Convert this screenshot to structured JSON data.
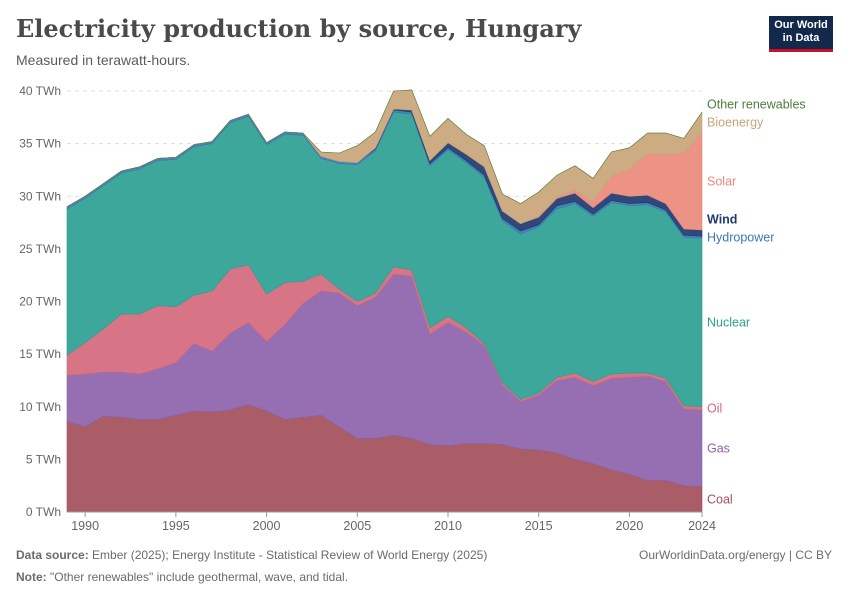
{
  "header": {
    "title": "Electricity production by source, Hungary",
    "subtitle": "Measured in terawatt-hours."
  },
  "logo": {
    "line1": "Our World",
    "line2": "in Data",
    "bg_color": "#13294b",
    "accent_color": "#c8102e"
  },
  "footer": {
    "source_label": "Data source:",
    "source_text": " Ember (2025); Energy Institute - Statistical Review of World Energy (2025)",
    "note_label": "Note:",
    "note_text": " \"Other renewables\" include geothermal, wave, and tidal.",
    "url": "OurWorldinData.org/energy | CC BY"
  },
  "chart_data": {
    "type": "area",
    "stacked": true,
    "x": [
      1989,
      1990,
      1991,
      1992,
      1993,
      1994,
      1995,
      1996,
      1997,
      1998,
      1999,
      2000,
      2001,
      2002,
      2003,
      2004,
      2005,
      2006,
      2007,
      2008,
      2009,
      2010,
      2011,
      2012,
      2013,
      2014,
      2015,
      2016,
      2017,
      2018,
      2019,
      2020,
      2021,
      2022,
      2023,
      2024
    ],
    "xticks": [
      "1990",
      "1995",
      "2000",
      "2005",
      "2010",
      "2015",
      "2020",
      "2024"
    ],
    "ylim": [
      0,
      40
    ],
    "yticks": [
      "0 TWh",
      "5 TWh",
      "10 TWh",
      "15 TWh",
      "20 TWh",
      "25 TWh",
      "30 TWh",
      "35 TWh",
      "40 TWh"
    ],
    "grid": "horizontal dashed",
    "legend": "right, inline labels",
    "series": [
      {
        "name": "Coal",
        "color": "#a34f59",
        "values": [
          8.6,
          8.1,
          9.1,
          9.0,
          8.8,
          8.8,
          9.2,
          9.6,
          9.5,
          9.7,
          10.2,
          9.6,
          8.8,
          9.0,
          9.2,
          8.1,
          7.0,
          7.0,
          7.3,
          7.0,
          6.4,
          6.3,
          6.5,
          6.5,
          6.4,
          6.0,
          5.9,
          5.6,
          5.0,
          4.6,
          4.0,
          3.6,
          3.0,
          3.0,
          2.5,
          2.4
        ]
      },
      {
        "name": "Gas",
        "color": "#8c63ab",
        "values": [
          4.4,
          5.0,
          4.2,
          4.3,
          4.3,
          4.8,
          5.0,
          6.4,
          5.8,
          7.3,
          7.8,
          6.6,
          9.0,
          10.8,
          11.8,
          12.7,
          12.6,
          13.4,
          15.3,
          15.4,
          10.5,
          11.7,
          10.6,
          9.3,
          5.7,
          4.5,
          5.2,
          6.9,
          7.8,
          7.4,
          8.7,
          9.2,
          9.9,
          9.4,
          7.3,
          7.3
        ]
      },
      {
        "name": "Oil",
        "color": "#d4687c",
        "values": [
          1.9,
          3.0,
          4.1,
          5.5,
          5.7,
          6.0,
          5.3,
          4.6,
          5.7,
          6.1,
          5.5,
          4.5,
          4.0,
          2.1,
          1.6,
          0.4,
          0.4,
          0.4,
          0.7,
          0.6,
          0.6,
          0.6,
          0.4,
          0.2,
          0.2,
          0.2,
          0.2,
          0.3,
          0.4,
          0.4,
          0.4,
          0.4,
          0.3,
          0.3,
          0.3,
          0.3
        ]
      },
      {
        "name": "Nuclear",
        "color": "#2c9f94",
        "values": [
          13.9,
          13.7,
          13.6,
          13.4,
          13.8,
          13.8,
          14.0,
          14.1,
          14.0,
          13.9,
          14.1,
          14.2,
          14.1,
          13.9,
          11.0,
          11.9,
          13.0,
          13.5,
          14.7,
          14.8,
          15.4,
          15.8,
          15.7,
          15.8,
          15.4,
          15.7,
          15.8,
          16.0,
          16.1,
          15.7,
          16.3,
          15.9,
          16.0,
          15.8,
          16.0,
          16.0
        ]
      },
      {
        "name": "Hydropower",
        "color": "#3a78b5",
        "values": [
          0.2,
          0.2,
          0.2,
          0.2,
          0.2,
          0.2,
          0.2,
          0.2,
          0.2,
          0.2,
          0.2,
          0.2,
          0.2,
          0.2,
          0.2,
          0.2,
          0.2,
          0.2,
          0.2,
          0.2,
          0.2,
          0.2,
          0.2,
          0.2,
          0.2,
          0.3,
          0.2,
          0.3,
          0.2,
          0.2,
          0.2,
          0.2,
          0.2,
          0.2,
          0.2,
          0.2
        ]
      },
      {
        "name": "Wind",
        "color": "#1e3a6e",
        "values": [
          0,
          0,
          0,
          0,
          0,
          0,
          0,
          0,
          0,
          0,
          0,
          0,
          0,
          0,
          0,
          0,
          0,
          0.1,
          0.1,
          0.2,
          0.3,
          0.5,
          0.6,
          0.8,
          0.7,
          0.7,
          0.7,
          0.7,
          0.8,
          0.6,
          0.7,
          0.7,
          0.7,
          0.6,
          0.6,
          0.6
        ]
      },
      {
        "name": "Solar",
        "color": "#ea8a7b",
        "values": [
          0,
          0,
          0,
          0,
          0,
          0,
          0,
          0,
          0,
          0,
          0,
          0,
          0,
          0,
          0,
          0,
          0,
          0,
          0,
          0,
          0,
          0,
          0,
          0,
          0,
          0,
          0.1,
          0.1,
          0.3,
          0.6,
          1.6,
          2.6,
          3.9,
          4.7,
          7.2,
          9.2
        ]
      },
      {
        "name": "Bioenergy",
        "color": "#c9a57a",
        "values": [
          0,
          0,
          0,
          0,
          0,
          0,
          0,
          0,
          0,
          0,
          0,
          0,
          0,
          0,
          0.4,
          0.8,
          1.6,
          1.5,
          1.7,
          1.9,
          2.3,
          2.3,
          1.9,
          2.0,
          1.6,
          1.9,
          2.3,
          2.1,
          2.3,
          2.2,
          2.3,
          2.0,
          2.0,
          2.0,
          1.4,
          2.0
        ]
      },
      {
        "name": "Other renewables",
        "color": "#4c7d3a",
        "values": [
          0,
          0,
          0,
          0,
          0,
          0,
          0,
          0,
          0,
          0,
          0,
          0,
          0,
          0,
          0,
          0,
          0,
          0,
          0,
          0,
          0,
          0,
          0,
          0,
          0,
          0,
          0,
          0,
          0,
          0,
          0,
          0,
          0,
          0,
          0,
          0
        ]
      }
    ]
  }
}
